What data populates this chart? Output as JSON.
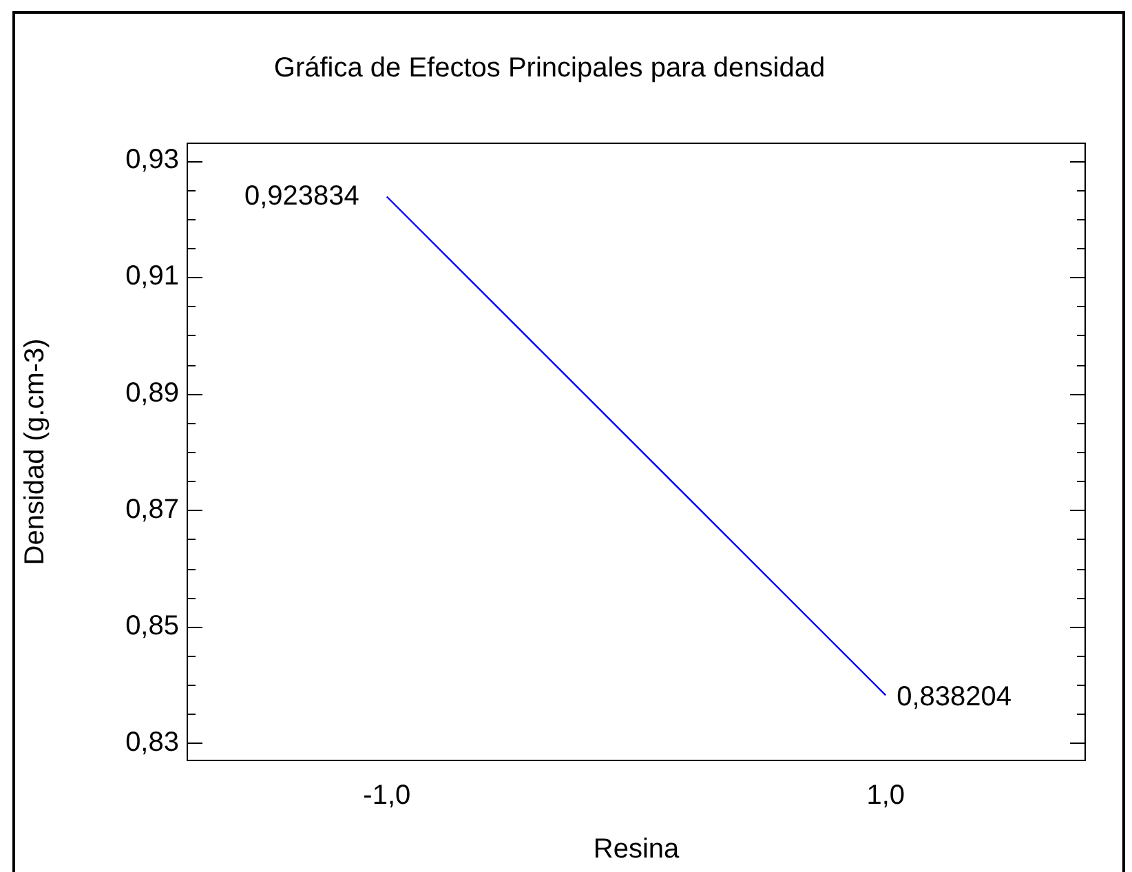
{
  "chart_data": {
    "type": "line",
    "title": "Gráfica de Efectos Principales para densidad",
    "xlabel": "Resina",
    "ylabel": "Densidad (g.cm-3)",
    "x": [
      -1,
      1
    ],
    "series": [
      {
        "color": "#0000ff",
        "values": [
          0.923834,
          0.838204
        ],
        "value_labels": [
          "0,923834",
          "0,838204"
        ]
      }
    ],
    "xlim": [
      -1.8,
      1.8
    ],
    "xticks": [
      {
        "value": -1,
        "label": "-1,0"
      },
      {
        "value": 1,
        "label": "1,0"
      }
    ],
    "ylim": [
      0.827,
      0.933
    ],
    "yticks": [
      {
        "value": 0.83,
        "label": "0,83"
      },
      {
        "value": 0.835,
        "label": null
      },
      {
        "value": 0.84,
        "label": null
      },
      {
        "value": 0.845,
        "label": null
      },
      {
        "value": 0.85,
        "label": "0,85"
      },
      {
        "value": 0.855,
        "label": null
      },
      {
        "value": 0.86,
        "label": null
      },
      {
        "value": 0.865,
        "label": null
      },
      {
        "value": 0.87,
        "label": "0,87"
      },
      {
        "value": 0.875,
        "label": null
      },
      {
        "value": 0.88,
        "label": null
      },
      {
        "value": 0.885,
        "label": null
      },
      {
        "value": 0.89,
        "label": "0,89"
      },
      {
        "value": 0.895,
        "label": null
      },
      {
        "value": 0.9,
        "label": null
      },
      {
        "value": 0.905,
        "label": null
      },
      {
        "value": 0.91,
        "label": "0,91"
      },
      {
        "value": 0.915,
        "label": null
      },
      {
        "value": 0.92,
        "label": null
      },
      {
        "value": 0.925,
        "label": null
      },
      {
        "value": 0.93,
        "label": "0,93"
      }
    ],
    "grid": false,
    "legend": false,
    "marker": "none",
    "line_style": "solid"
  }
}
